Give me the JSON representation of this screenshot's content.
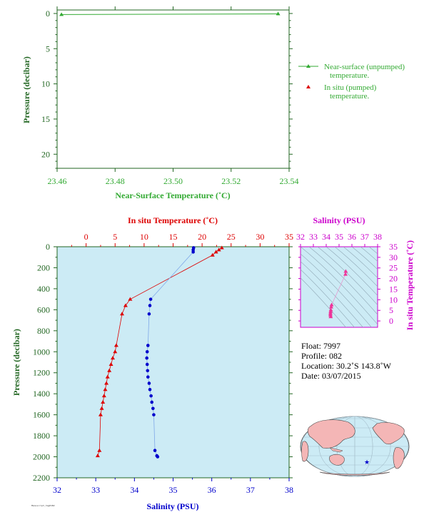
{
  "colors": {
    "temp": "#dd0000",
    "sal": "#0000cc",
    "green": "#33aa33",
    "axis_green": "#226622",
    "magenta": "#cc00cc",
    "panel_bg": "#ccebf5",
    "land": "#f4b6b6"
  },
  "chart_data": [
    {
      "type": "line",
      "title": "",
      "xlabel": "Near-Surface Temperature (˚C)",
      "ylabel": "Pressure (decibar)",
      "xlim": [
        23.46,
        23.54
      ],
      "ylim": [
        22,
        -0.5
      ],
      "xticks": [
        "23.46",
        "23.48",
        "23.50",
        "23.52",
        "23.54"
      ],
      "yticks": [
        "0",
        "5",
        "10",
        "15",
        "20"
      ],
      "series": [
        {
          "name": "Near-surface (unpumped) temperature.",
          "marker": "triangle",
          "x": [
            23.4615,
            23.5362
          ],
          "y": [
            0.15,
            0.05
          ]
        },
        {
          "name": "In situ (pumped) temperature.",
          "marker": "triangle",
          "x": [],
          "y": []
        }
      ],
      "legend_position": "right"
    },
    {
      "type": "scatter",
      "title": "",
      "ylabel": "Pressure (decibar)",
      "ylim": [
        2200,
        0
      ],
      "yticks": [
        "0",
        "200",
        "400",
        "600",
        "800",
        "1000",
        "1200",
        "1400",
        "1600",
        "1800",
        "2000",
        "2200"
      ],
      "top_axis": {
        "label": "In situ Temperature (˚C)",
        "lim": [
          -5,
          35
        ],
        "ticks": [
          "0",
          "5",
          "10",
          "15",
          "20",
          "25",
          "30",
          "35"
        ]
      },
      "bottom_axis": {
        "label": "Salinity (PSU)",
        "lim": [
          32,
          38
        ],
        "ticks": [
          "32",
          "33",
          "34",
          "35",
          "36",
          "37",
          "38"
        ]
      },
      "series": [
        {
          "name": "In situ Temperature (˚C)",
          "x": [
            23.4,
            22.9,
            22.4,
            21.8,
            7.6,
            6.8,
            6.2,
            5.2,
            5.0,
            4.6,
            4.3,
            4.0,
            3.7,
            3.5,
            3.3,
            3.1,
            2.9,
            2.7,
            2.5,
            2.3,
            2.0
          ],
          "y": [
            10,
            30,
            50,
            80,
            500,
            560,
            640,
            940,
            1000,
            1060,
            1120,
            1180,
            1240,
            1300,
            1360,
            1420,
            1480,
            1540,
            1600,
            1940,
            1990
          ]
        },
        {
          "name": "Salinity (PSU)",
          "x": [
            35.53,
            35.52,
            35.52,
            34.42,
            34.4,
            34.38,
            34.35,
            34.33,
            34.32,
            34.33,
            34.34,
            34.35,
            34.38,
            34.4,
            34.43,
            34.45,
            34.48,
            34.5,
            34.53,
            34.58,
            34.6
          ],
          "y": [
            10,
            30,
            50,
            500,
            560,
            640,
            940,
            1000,
            1060,
            1120,
            1180,
            1240,
            1300,
            1360,
            1420,
            1480,
            1540,
            1600,
            1940,
            1990,
            2000
          ]
        }
      ]
    },
    {
      "type": "scatter",
      "title": "",
      "xlabel": "Salinity (PSU)",
      "ylabel": "In situ Temperature (˚C)",
      "xlim": [
        32,
        38
      ],
      "ylim": [
        -3,
        35
      ],
      "xticks": [
        "32",
        "33",
        "34",
        "35",
        "36",
        "37",
        "38"
      ],
      "yticks": [
        "0",
        "5",
        "10",
        "15",
        "20",
        "25",
        "30",
        "35"
      ],
      "x": [
        35.52,
        35.5,
        34.42,
        34.39,
        34.36,
        34.34,
        34.33,
        34.33,
        34.35
      ],
      "y": [
        23.4,
        22.0,
        7.6,
        6.6,
        5.2,
        4.3,
        3.5,
        2.8,
        2.0
      ]
    }
  ],
  "info": {
    "float": "Float:  7997",
    "profile": "Profile:  082",
    "location": "Location:  30.2˚S  143.8˚W",
    "date": "Date:  03/07/2015"
  },
  "map": {
    "float_marker_lon": -143.8,
    "float_marker_lat": -30.2
  },
  "footer": "Manuscript_tag0182"
}
